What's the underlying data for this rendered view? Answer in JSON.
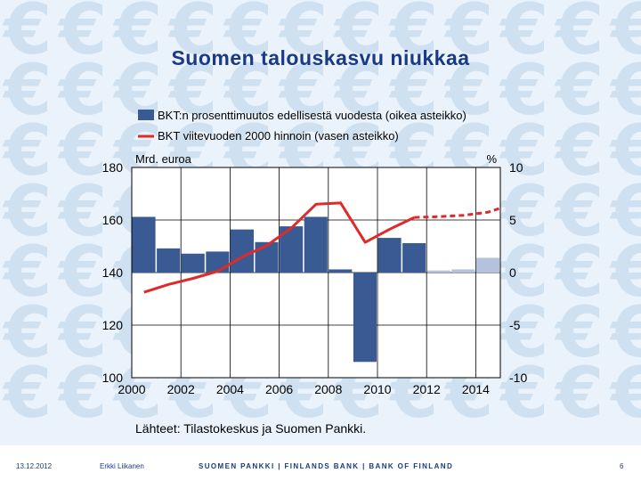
{
  "slide": {
    "title": "Suomen talouskasvu niukkaa",
    "footer_date": "13.12.2012",
    "footer_author": "Erkki Liikanen",
    "footer_bank": "SUOMEN PANKKI | FINLANDS BANK | BANK OF FINLAND",
    "page_number": "6",
    "watermark_icon": "euro-sign-icon"
  },
  "colors": {
    "title": "#1a3a88",
    "bar_actual": "#3a5a93",
    "bar_forecast": "#b4c3dc",
    "line": "#e02a2a",
    "background": "#eaf3fb",
    "watermark": "#cfe0f1"
  },
  "chart_data": {
    "type": "bar+line",
    "legend": [
      {
        "label": "BKT:n prosenttimuutos edellisestä vuodesta (oikea asteikko)",
        "kind": "bar"
      },
      {
        "label": "BKT viitevuoden 2000 hinnoin (vasen asteikko)",
        "kind": "line"
      }
    ],
    "left_axis_label": "Mrd. euroa",
    "right_axis_label": "%",
    "left_ticks": [
      180,
      160,
      140,
      120,
      100
    ],
    "right_ticks": [
      10,
      5,
      0,
      -5,
      -10
    ],
    "left_lim": [
      100,
      180
    ],
    "right_lim": [
      -10,
      10
    ],
    "x_lim": [
      2000,
      2015
    ],
    "x_ticks": [
      2000,
      2002,
      2004,
      2006,
      2008,
      2010,
      2012,
      2014
    ],
    "grid": true,
    "source": "Lähteet: Tilastokeskus ja Suomen Pankki.",
    "bars": [
      {
        "year": 2000,
        "value": 5.3,
        "forecast": false
      },
      {
        "year": 2001,
        "value": 2.3,
        "forecast": false
      },
      {
        "year": 2002,
        "value": 1.8,
        "forecast": false
      },
      {
        "year": 2003,
        "value": 2.0,
        "forecast": false
      },
      {
        "year": 2004,
        "value": 4.1,
        "forecast": false
      },
      {
        "year": 2005,
        "value": 2.9,
        "forecast": false
      },
      {
        "year": 2006,
        "value": 4.4,
        "forecast": false
      },
      {
        "year": 2007,
        "value": 5.3,
        "forecast": false
      },
      {
        "year": 2008,
        "value": 0.3,
        "forecast": false
      },
      {
        "year": 2009,
        "value": -8.5,
        "forecast": false
      },
      {
        "year": 2010,
        "value": 3.3,
        "forecast": false
      },
      {
        "year": 2011,
        "value": 2.8,
        "forecast": false
      },
      {
        "year": 2012,
        "value": 0.2,
        "forecast": true
      },
      {
        "year": 2013,
        "value": 0.3,
        "forecast": true
      },
      {
        "year": 2014,
        "value": 1.4,
        "forecast": true
      }
    ],
    "line_actual": [
      {
        "year": 2000,
        "value": 132.5
      },
      {
        "year": 2001,
        "value": 135.5
      },
      {
        "year": 2002,
        "value": 137.8
      },
      {
        "year": 2003,
        "value": 140.5
      },
      {
        "year": 2004,
        "value": 146.0
      },
      {
        "year": 2005,
        "value": 150.3
      },
      {
        "year": 2006,
        "value": 157.0
      },
      {
        "year": 2007,
        "value": 166.0
      },
      {
        "year": 2008,
        "value": 166.5
      },
      {
        "year": 2009,
        "value": 151.5
      },
      {
        "year": 2010,
        "value": 156.5
      },
      {
        "year": 2011,
        "value": 161.0
      }
    ],
    "line_forecast": [
      {
        "year": 2011,
        "value": 161.0
      },
      {
        "year": 2012,
        "value": 161.3
      },
      {
        "year": 2013,
        "value": 161.8
      },
      {
        "year": 2014,
        "value": 163.0
      },
      {
        "year": 2014.5,
        "value": 164.5
      }
    ]
  }
}
